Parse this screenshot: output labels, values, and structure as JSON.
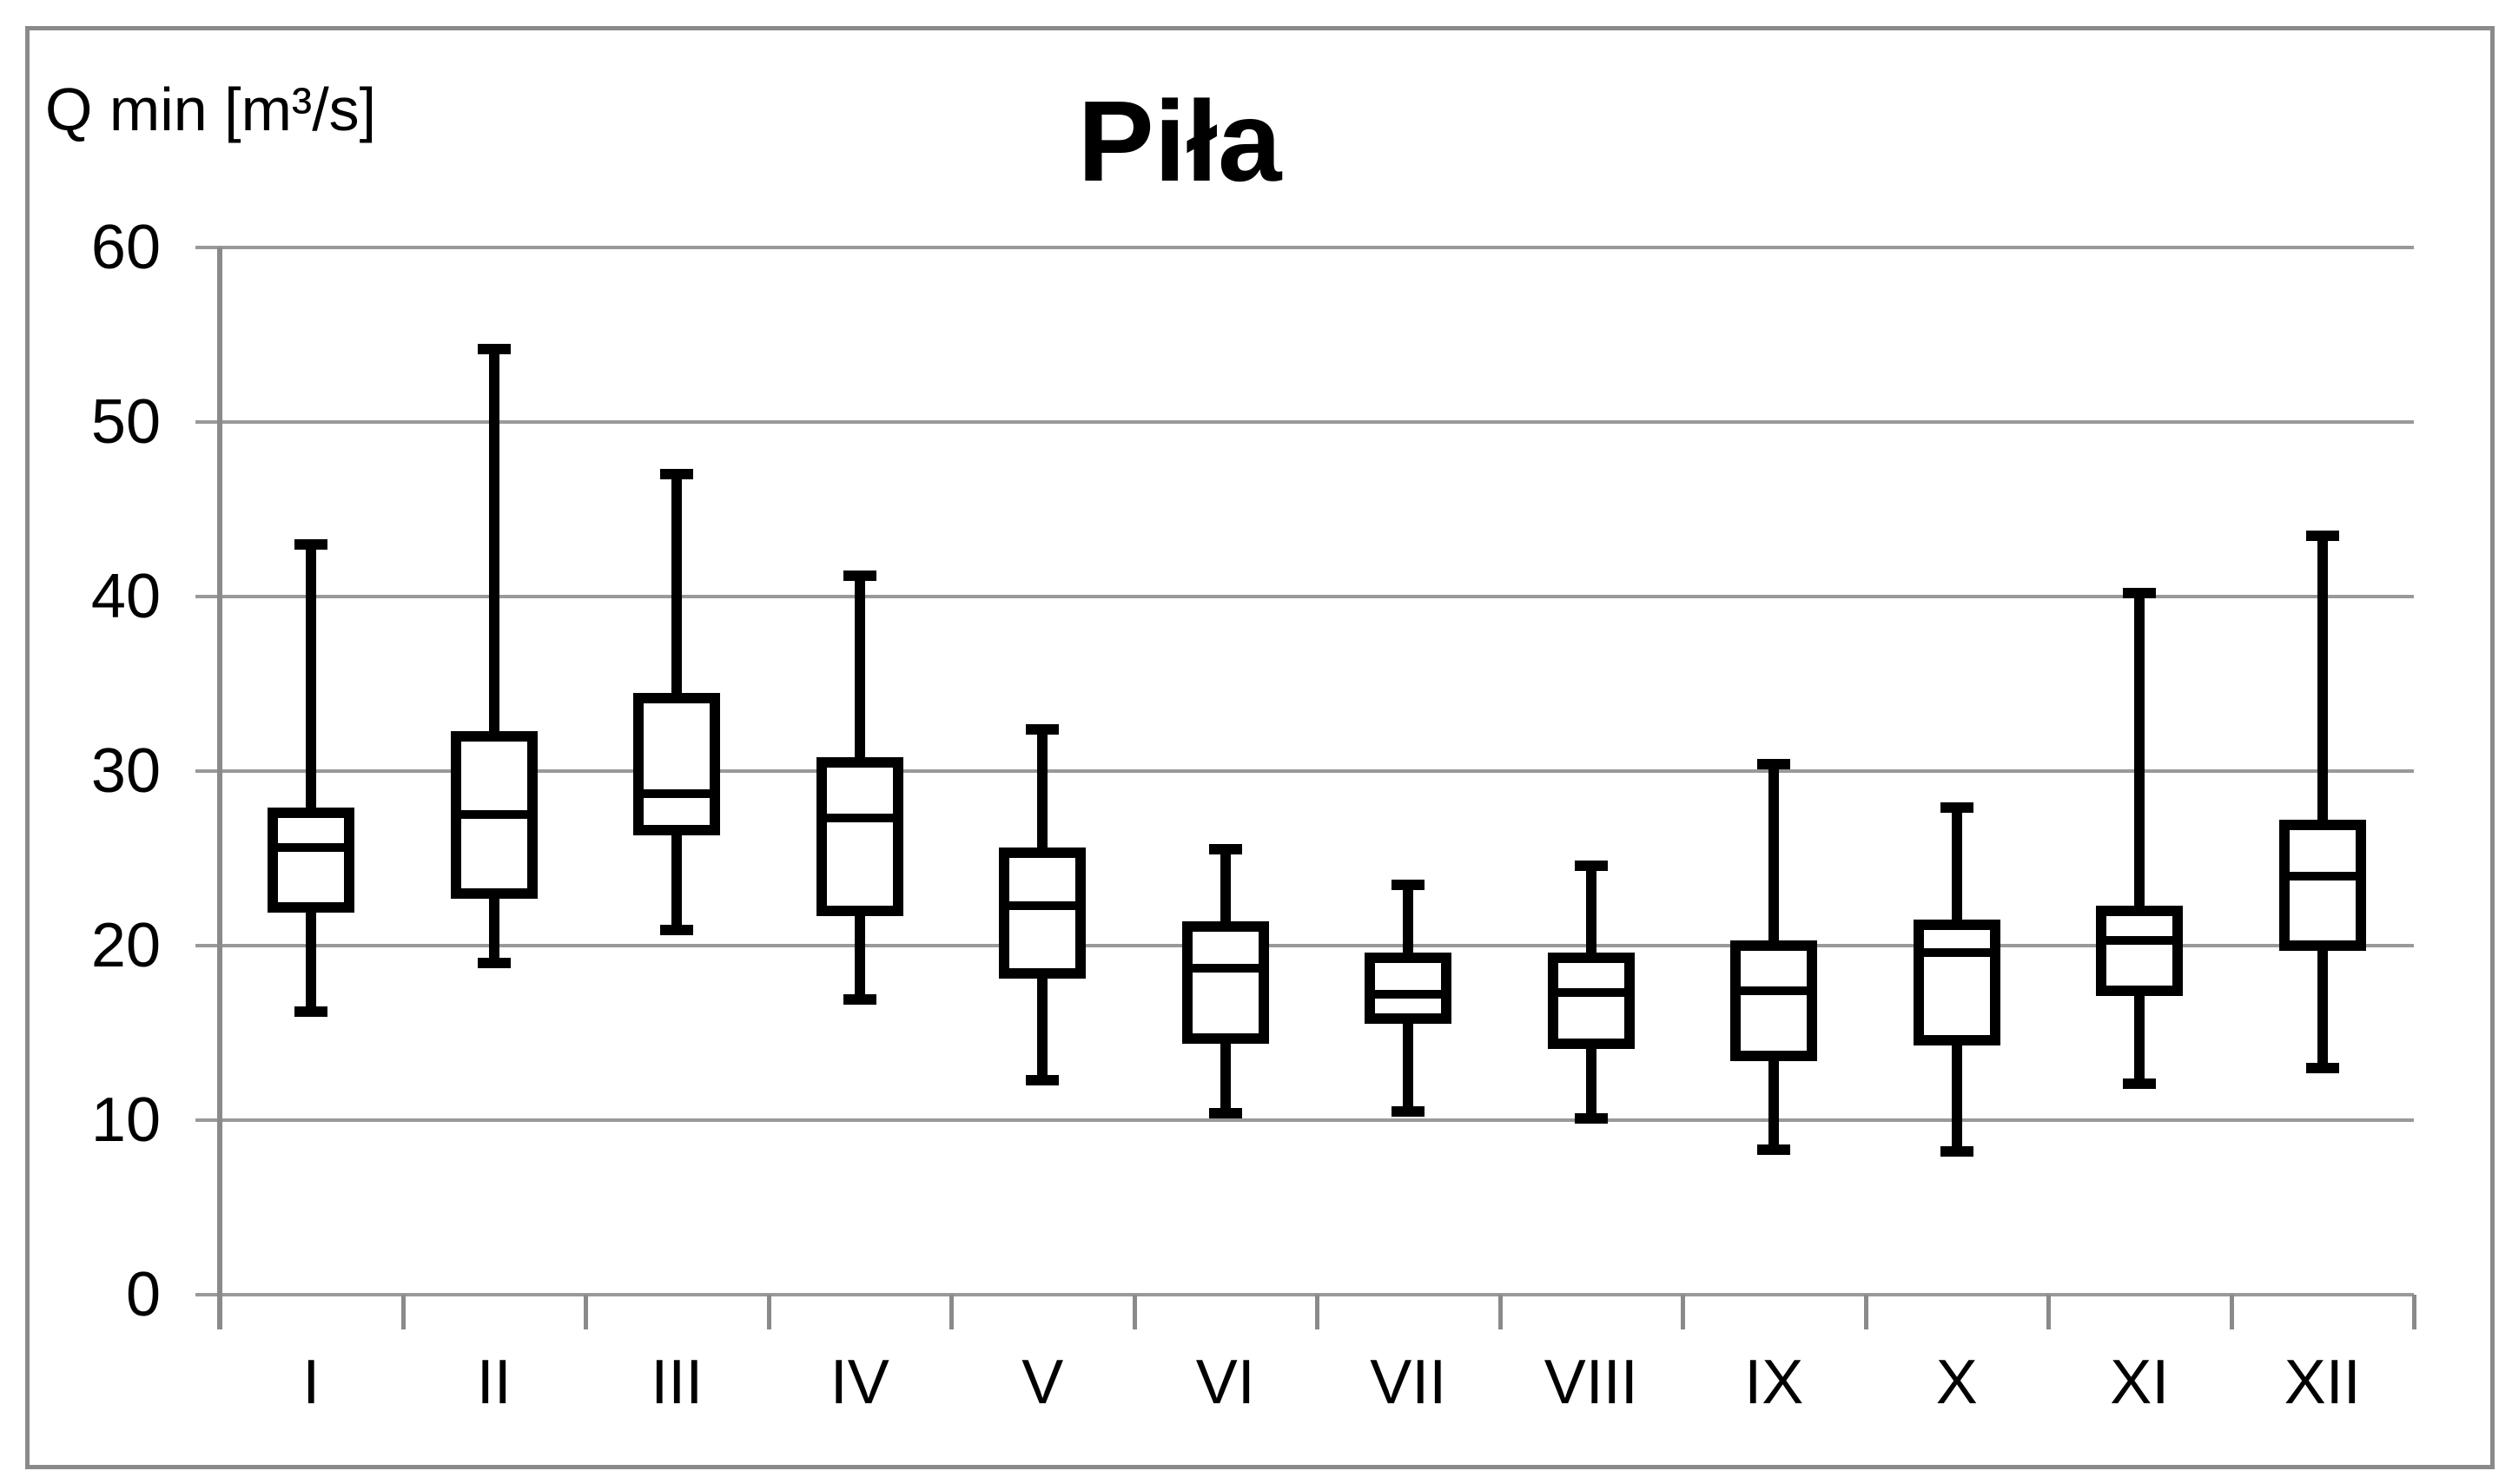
{
  "chart_data": {
    "type": "boxplot",
    "title": "Piła",
    "y_axis_label": "Q min [m³/s]",
    "xlabel": "",
    "ylabel": "Q min [m³/s]",
    "ylim": [
      0,
      60
    ],
    "yticks": [
      0,
      10,
      20,
      30,
      40,
      50,
      60
    ],
    "grid": "horizontal",
    "legend": "none",
    "categories": [
      "I",
      "II",
      "III",
      "IV",
      "V",
      "VI",
      "VII",
      "VIII",
      "IX",
      "X",
      "XI",
      "XII"
    ],
    "months": [
      {
        "label": "I",
        "min": 16.2,
        "q1": 22.2,
        "median": 25.6,
        "q3": 27.6,
        "max": 43.0
      },
      {
        "label": "II",
        "min": 19.0,
        "q1": 23.0,
        "median": 27.5,
        "q3": 32.0,
        "max": 54.2
      },
      {
        "label": "III",
        "min": 20.9,
        "q1": 26.6,
        "median": 28.7,
        "q3": 34.2,
        "max": 47.0
      },
      {
        "label": "IV",
        "min": 16.9,
        "q1": 22.0,
        "median": 27.3,
        "q3": 30.5,
        "max": 41.2
      },
      {
        "label": "V",
        "min": 12.3,
        "q1": 18.4,
        "median": 22.3,
        "q3": 25.3,
        "max": 32.4
      },
      {
        "label": "VI",
        "min": 10.4,
        "q1": 14.7,
        "median": 18.7,
        "q3": 21.1,
        "max": 25.5
      },
      {
        "label": "VII",
        "min": 10.5,
        "q1": 15.8,
        "median": 17.2,
        "q3": 19.3,
        "max": 23.5
      },
      {
        "label": "VIII",
        "min": 10.1,
        "q1": 14.4,
        "median": 17.3,
        "q3": 19.3,
        "max": 24.6
      },
      {
        "label": "IX",
        "min": 8.3,
        "q1": 13.7,
        "median": 17.4,
        "q3": 20.0,
        "max": 30.4
      },
      {
        "label": "X",
        "min": 8.2,
        "q1": 14.6,
        "median": 19.6,
        "q3": 21.2,
        "max": 27.9
      },
      {
        "label": "XI",
        "min": 12.1,
        "q1": 17.4,
        "median": 20.3,
        "q3": 22.0,
        "max": 40.2
      },
      {
        "label": "XII",
        "min": 13.0,
        "q1": 20.0,
        "median": 24.0,
        "q3": 26.9,
        "max": 43.5
      }
    ]
  },
  "colors": {
    "background": "#ffffff",
    "frame": "#8a8a8a",
    "axis": "#8a8a8a",
    "gridline": "#999999",
    "box": "#000000",
    "text": "#000000"
  }
}
